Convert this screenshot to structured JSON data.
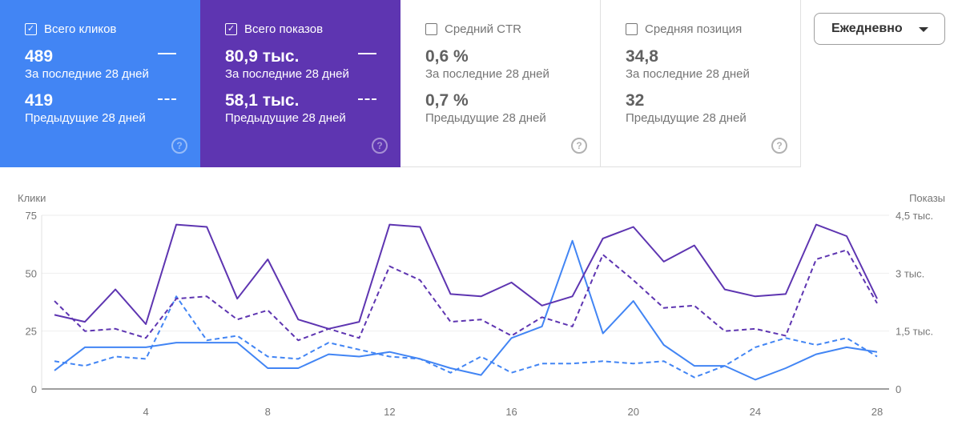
{
  "cards": [
    {
      "label": "Всего кликов",
      "checked": true,
      "current": "489",
      "current_label": "За последние 28 дней",
      "previous": "419",
      "previous_label": "Предыдущие 28 дней",
      "color": "#4285f4"
    },
    {
      "label": "Всего показов",
      "checked": true,
      "current": "80,9 тыс.",
      "current_label": "За последние 28 дней",
      "previous": "58,1 тыс.",
      "previous_label": "Предыдущие 28 дней",
      "color": "#5e35b1"
    },
    {
      "label": "Средний CTR",
      "checked": false,
      "current": "0,6 %",
      "current_label": "За последние 28 дней",
      "previous": "0,7 %",
      "previous_label": "Предыдущие 28 дней"
    },
    {
      "label": "Средняя позиция",
      "checked": false,
      "current": "34,8",
      "current_label": "За последние 28 дней",
      "previous": "32",
      "previous_label": "Предыдущие 28 дней"
    }
  ],
  "period_dropdown": {
    "value": "Ежедневно"
  },
  "chart_data": {
    "type": "line",
    "ylabel_left": "Клики",
    "ylabel_right": "Показы",
    "ylim_left": [
      0,
      75
    ],
    "ylim_right": [
      0,
      4500
    ],
    "yticks_left": [
      "0",
      "25",
      "50",
      "75"
    ],
    "yticks_right": [
      "0",
      "1,5 тыс.",
      "3 тыс.",
      "4,5 тыс."
    ],
    "xticks": [
      "4",
      "8",
      "12",
      "16",
      "20",
      "24",
      "28"
    ],
    "x": [
      1,
      2,
      3,
      4,
      5,
      6,
      7,
      8,
      9,
      10,
      11,
      12,
      13,
      14,
      15,
      16,
      17,
      18,
      19,
      20,
      21,
      22,
      23,
      24,
      25,
      26,
      27,
      28
    ],
    "grid": true,
    "series": [
      {
        "metric": "clicks",
        "period": "current",
        "axis": "left",
        "style": "solid",
        "color": "#4285f4",
        "values": [
          8,
          18,
          18,
          18,
          20,
          20,
          20,
          9,
          9,
          15,
          14,
          16,
          13,
          9,
          6,
          22,
          27,
          64,
          24,
          38,
          19,
          10,
          10,
          4,
          9,
          15,
          18,
          16
        ]
      },
      {
        "metric": "clicks",
        "period": "previous",
        "axis": "left",
        "style": "dashed",
        "color": "#4285f4",
        "values": [
          12,
          10,
          14,
          13,
          40,
          21,
          23,
          14,
          13,
          20,
          17,
          14,
          13,
          7,
          14,
          7,
          11,
          11,
          12,
          11,
          12,
          5,
          10,
          18,
          22,
          19,
          22,
          14
        ]
      },
      {
        "metric": "impressions",
        "period": "current",
        "axis": "right",
        "style": "solid",
        "color": "#5e35b1",
        "values": [
          1920,
          1740,
          2580,
          1680,
          4260,
          4200,
          2340,
          3360,
          1800,
          1560,
          1740,
          4260,
          4200,
          2460,
          2400,
          2760,
          2160,
          2400,
          3900,
          4200,
          3300,
          3720,
          2580,
          2400,
          2460,
          4260,
          3960,
          2340
        ]
      },
      {
        "metric": "impressions",
        "period": "previous",
        "axis": "right",
        "style": "dashed",
        "color": "#5e35b1",
        "values": [
          2280,
          1500,
          1560,
          1320,
          2340,
          2400,
          1800,
          2040,
          1260,
          1560,
          1320,
          3180,
          2820,
          1740,
          1800,
          1380,
          1860,
          1620,
          3480,
          2820,
          2100,
          2160,
          1500,
          1560,
          1380,
          3360,
          3600,
          2220
        ]
      }
    ]
  }
}
